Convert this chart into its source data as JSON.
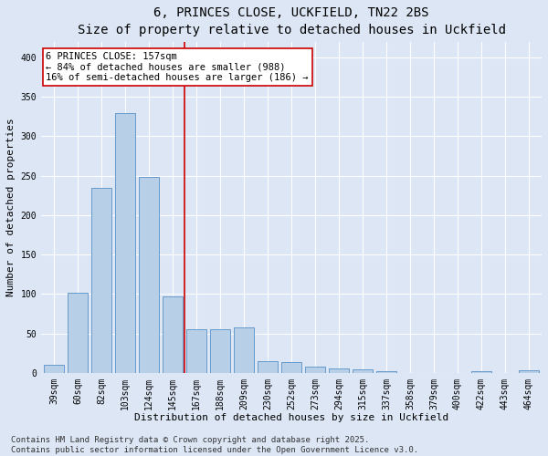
{
  "title": "6, PRINCES CLOSE, UCKFIELD, TN22 2BS",
  "subtitle": "Size of property relative to detached houses in Uckfield",
  "xlabel": "Distribution of detached houses by size in Uckfield",
  "ylabel": "Number of detached properties",
  "categories": [
    "39sqm",
    "60sqm",
    "82sqm",
    "103sqm",
    "124sqm",
    "145sqm",
    "167sqm",
    "188sqm",
    "209sqm",
    "230sqm",
    "252sqm",
    "273sqm",
    "294sqm",
    "315sqm",
    "337sqm",
    "358sqm",
    "379sqm",
    "400sqm",
    "422sqm",
    "443sqm",
    "464sqm"
  ],
  "values": [
    10,
    102,
    235,
    330,
    248,
    97,
    55,
    55,
    58,
    15,
    14,
    8,
    5,
    4,
    2,
    0,
    0,
    0,
    2,
    0,
    3
  ],
  "bar_color": "#b8cfe8",
  "bar_edge_color": "#6699cc",
  "background_color": "#dce6f5",
  "grid_color": "#ffffff",
  "annotation_text_line1": "6 PRINCES CLOSE: 157sqm",
  "annotation_text_line2": "← 84% of detached houses are smaller (988)",
  "annotation_text_line3": "16% of semi-detached houses are larger (186) →",
  "annotation_box_color": "#ffffff",
  "annotation_box_edge": "#cc0000",
  "vline_color": "#cc0000",
  "ylim": [
    0,
    420
  ],
  "yticks": [
    0,
    50,
    100,
    150,
    200,
    250,
    300,
    350,
    400
  ],
  "footer_line1": "Contains HM Land Registry data © Crown copyright and database right 2025.",
  "footer_line2": "Contains public sector information licensed under the Open Government Licence v3.0.",
  "title_fontsize": 10,
  "subtitle_fontsize": 9,
  "axis_label_fontsize": 8,
  "tick_fontsize": 7,
  "annotation_fontsize": 7.5,
  "footer_fontsize": 6.5
}
